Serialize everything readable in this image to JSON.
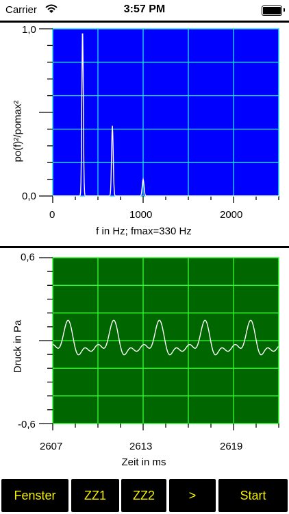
{
  "status_bar": {
    "carrier": "Carrier",
    "time": "3:57 PM",
    "icons": [
      "wifi-icon",
      "battery-icon"
    ]
  },
  "spectrum": {
    "ylabel": "po(f)²/pomax²",
    "y_tick_top": "1,0",
    "y_tick_bottom": "0,0",
    "x_ticks": [
      "0",
      "1000",
      "2000"
    ],
    "xlabel": "f in Hz; fmax=330 Hz",
    "colors": {
      "background": "#0000ff",
      "grid": "#23e0e0",
      "trace": "#ffffff"
    }
  },
  "waveform": {
    "ylabel": "Druck in Pa",
    "y_tick_top": "0,6",
    "y_tick_bottom": "-0,6",
    "x_ticks": [
      "2607",
      "2613",
      "2619"
    ],
    "xlabel": "Zeit in ms",
    "colors": {
      "background": "#006600",
      "grid": "#33ff33",
      "trace": "#ffffff"
    }
  },
  "buttons": [
    {
      "label": "Fenster"
    },
    {
      "label": "ZZ1"
    },
    {
      "label": "ZZ2"
    },
    {
      "label": ">"
    },
    {
      "label": "Start"
    }
  ],
  "chart_data": [
    {
      "type": "line",
      "title": "",
      "xlabel": "f in Hz; fmax=330 Hz",
      "ylabel": "po(f)²/pomax²",
      "xlim": [
        0,
        2500
      ],
      "ylim": [
        0,
        1
      ],
      "grid": true,
      "peaks": [
        {
          "x": 330,
          "y": 1.0
        },
        {
          "x": 660,
          "y": 0.42
        },
        {
          "x": 1000,
          "y": 0.1
        }
      ]
    },
    {
      "type": "line",
      "title": "",
      "xlabel": "Zeit in ms",
      "ylabel": "Druck in Pa",
      "xlim": [
        2607,
        2622
      ],
      "ylim": [
        -0.6,
        0.6
      ],
      "grid": true,
      "period_ms": 3.03,
      "amplitude_pa": 0.2
    }
  ]
}
